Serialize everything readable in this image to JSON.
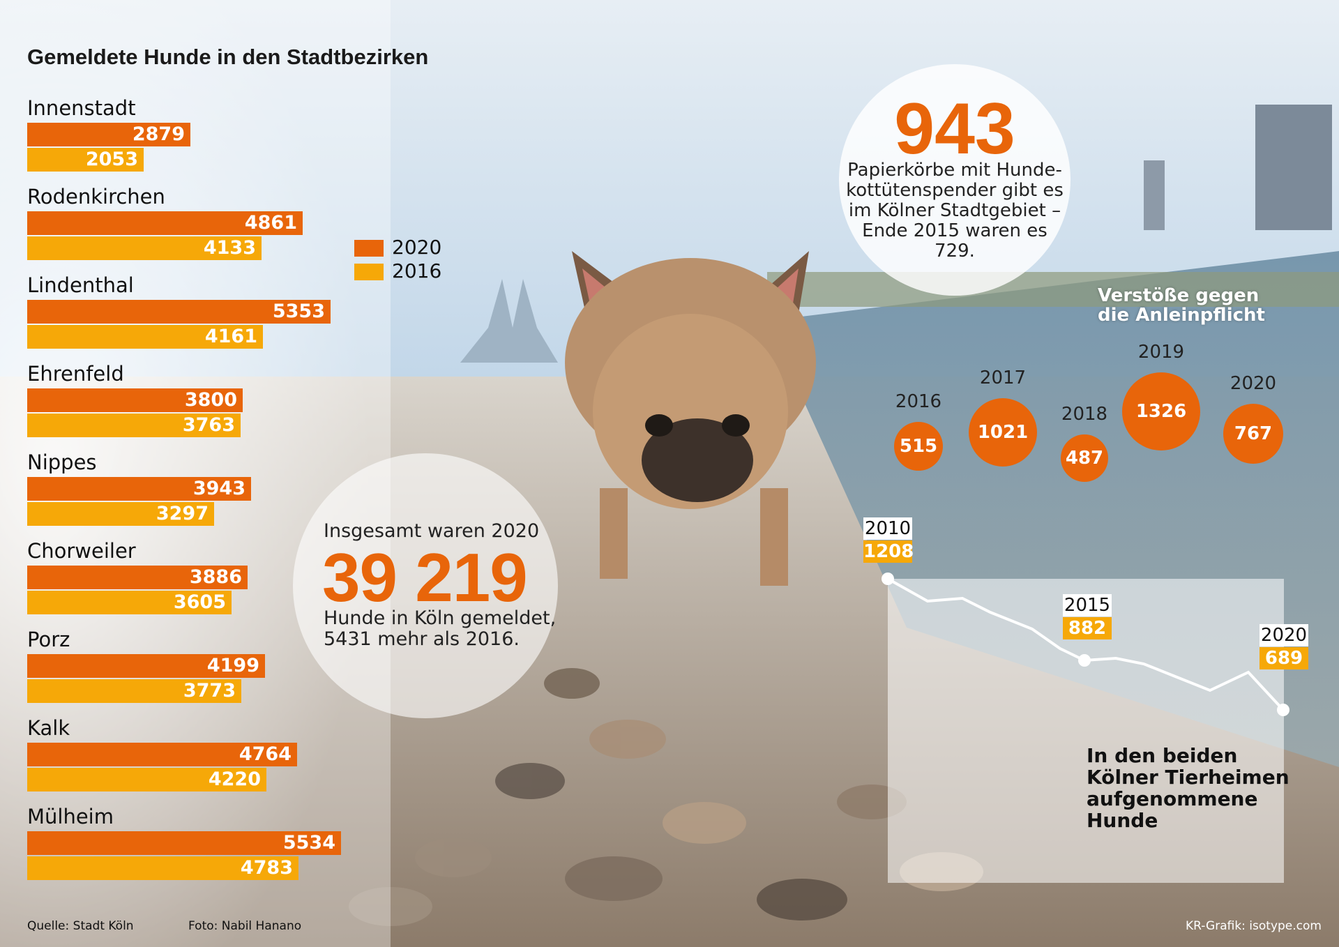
{
  "title": "Gemeldete Hunde in den Stadtbezirken",
  "legend": [
    {
      "label": "2020",
      "color": "#e8650a"
    },
    {
      "label": "2016",
      "color": "#f6a808"
    }
  ],
  "chart_data": {
    "type": "bar",
    "orientation": "horizontal",
    "categories": [
      "Innenstadt",
      "Rodenkirchen",
      "Lindenthal",
      "Ehrenfeld",
      "Nippes",
      "Chorweiler",
      "Porz",
      "Kalk",
      "Mülheim"
    ],
    "series": [
      {
        "name": "2020",
        "values": [
          2879,
          4861,
          5353,
          3800,
          3943,
          3886,
          4199,
          4764,
          5534
        ],
        "labels": [
          "2879",
          "4861",
          "5353",
          "3800",
          "3943",
          "3886",
          "4199",
          "4764",
          "5534"
        ]
      },
      {
        "name": "2016",
        "values": [
          2053,
          4133,
          4161,
          3763,
          3297,
          3605,
          3773,
          4220,
          4783
        ],
        "labels": [
          "2053",
          "4133",
          "4161",
          "3763",
          "3297",
          "3605",
          "3773",
          "4220",
          "4783"
        ]
      }
    ]
  },
  "baskets": {
    "number": "943",
    "lines": [
      "Papierkörbe mit Hunde-",
      "kottütenspender gibt es",
      "im Kölner Stadtgebiet –",
      "Ende 2015 waren es",
      "729."
    ]
  },
  "total": {
    "heading": "Insgesamt waren 2020",
    "number": "39 219",
    "lines": [
      "Hunde in Köln gemeldet,",
      "5431 mehr als 2016."
    ]
  },
  "violations": {
    "title_lines": [
      "Verstöße gegen",
      "die Anleinpflicht"
    ],
    "items": [
      {
        "year": "2016",
        "value": 515,
        "label": "515"
      },
      {
        "year": "2017",
        "value": 1021,
        "label": "1021"
      },
      {
        "year": "2018",
        "value": 487,
        "label": "487"
      },
      {
        "year": "2019",
        "value": 1326,
        "label": "1326"
      },
      {
        "year": "2020",
        "value": 767,
        "label": "767"
      }
    ]
  },
  "shelter": {
    "title_lines": [
      "In den beiden",
      "Kölner Tierheimen",
      "aufgenommene",
      "Hunde"
    ],
    "labels": [
      {
        "year": "2010",
        "value": "1208"
      },
      {
        "year": "2015",
        "value": "882"
      },
      {
        "year": "2020",
        "value": "689"
      }
    ]
  },
  "footer": {
    "source": "Quelle: Stadt Köln",
    "photo": "Foto: Nabil Hanano",
    "credit": "KR-Grafik: isotype.com"
  }
}
